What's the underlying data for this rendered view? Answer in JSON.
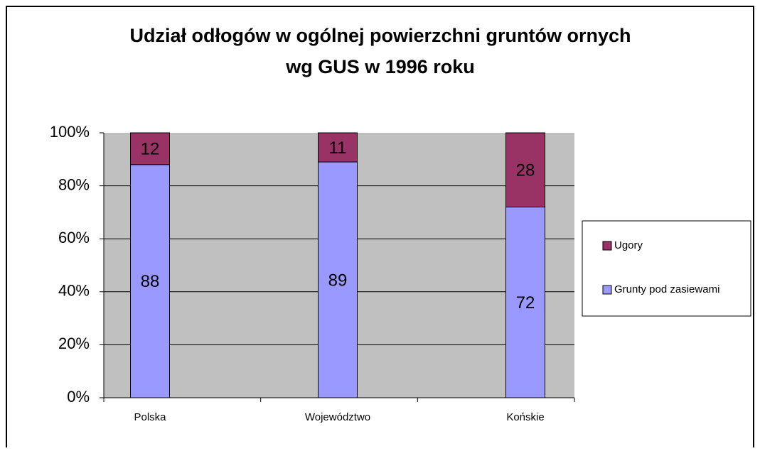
{
  "chart_data": {
    "type": "stacked_bar",
    "title": [
      "Udział odłogów w ogólnej powierzchni gruntów ornych",
      "wg GUS w 1996 roku"
    ],
    "categories": [
      "Polska",
      "Województwo",
      "Końskie"
    ],
    "series": [
      {
        "name": "Grunty pod zasiewami",
        "color": "#9999ff",
        "values": [
          88,
          89,
          72
        ]
      },
      {
        "name": "Ugory",
        "color": "#993366",
        "values": [
          12,
          11,
          28
        ]
      }
    ],
    "ylim": [
      0,
      100
    ],
    "yticks": [
      {
        "value": 0,
        "label": "0%"
      },
      {
        "value": 20,
        "label": "20%"
      },
      {
        "value": 40,
        "label": "40%"
      },
      {
        "value": 60,
        "label": "60%"
      },
      {
        "value": 80,
        "label": "80%"
      },
      {
        "value": 100,
        "label": "100%"
      }
    ],
    "grid": true,
    "legend": "right"
  }
}
